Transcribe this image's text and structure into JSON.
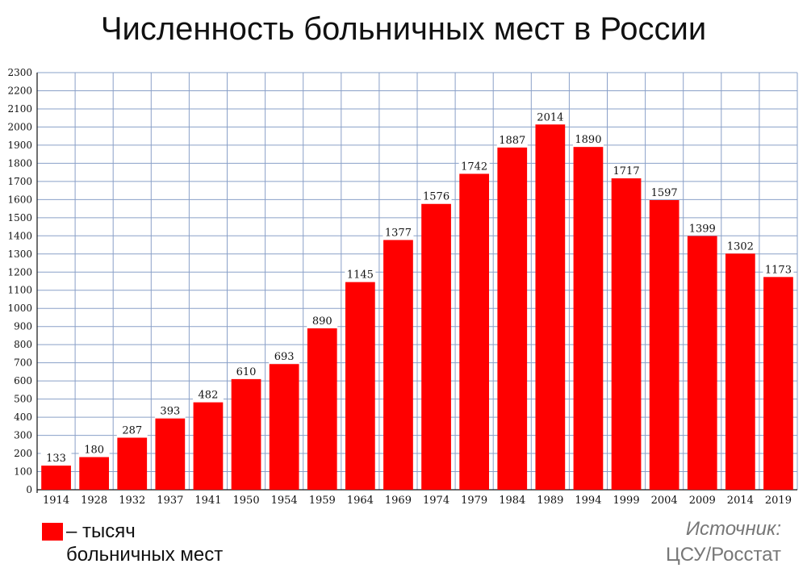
{
  "title": "Численность больничных мест в России",
  "legend": {
    "color": "#ff0000",
    "line1": "– тысяч",
    "line2": "больничных мест"
  },
  "source": {
    "line1": "Источник:",
    "line2": "ЦСУ/Росстат"
  },
  "chart_data": {
    "type": "bar",
    "title": "Численность больничных мест в России",
    "categories": [
      "1914",
      "1928",
      "1932",
      "1937",
      "1941",
      "1950",
      "1954",
      "1959",
      "1964",
      "1969",
      "1974",
      "1979",
      "1984",
      "1989",
      "1994",
      "1999",
      "2004",
      "2009",
      "2014",
      "2019"
    ],
    "values": [
      133,
      180,
      287,
      393,
      482,
      610,
      693,
      890,
      1145,
      1377,
      1576,
      1742,
      1887,
      2014,
      1890,
      1717,
      1597,
      1399,
      1302,
      1173
    ],
    "ylim": [
      0,
      2300
    ],
    "ytick_step": 100,
    "grid": true,
    "bar_color": "#ff0000",
    "xlabel": "",
    "ylabel": ""
  }
}
